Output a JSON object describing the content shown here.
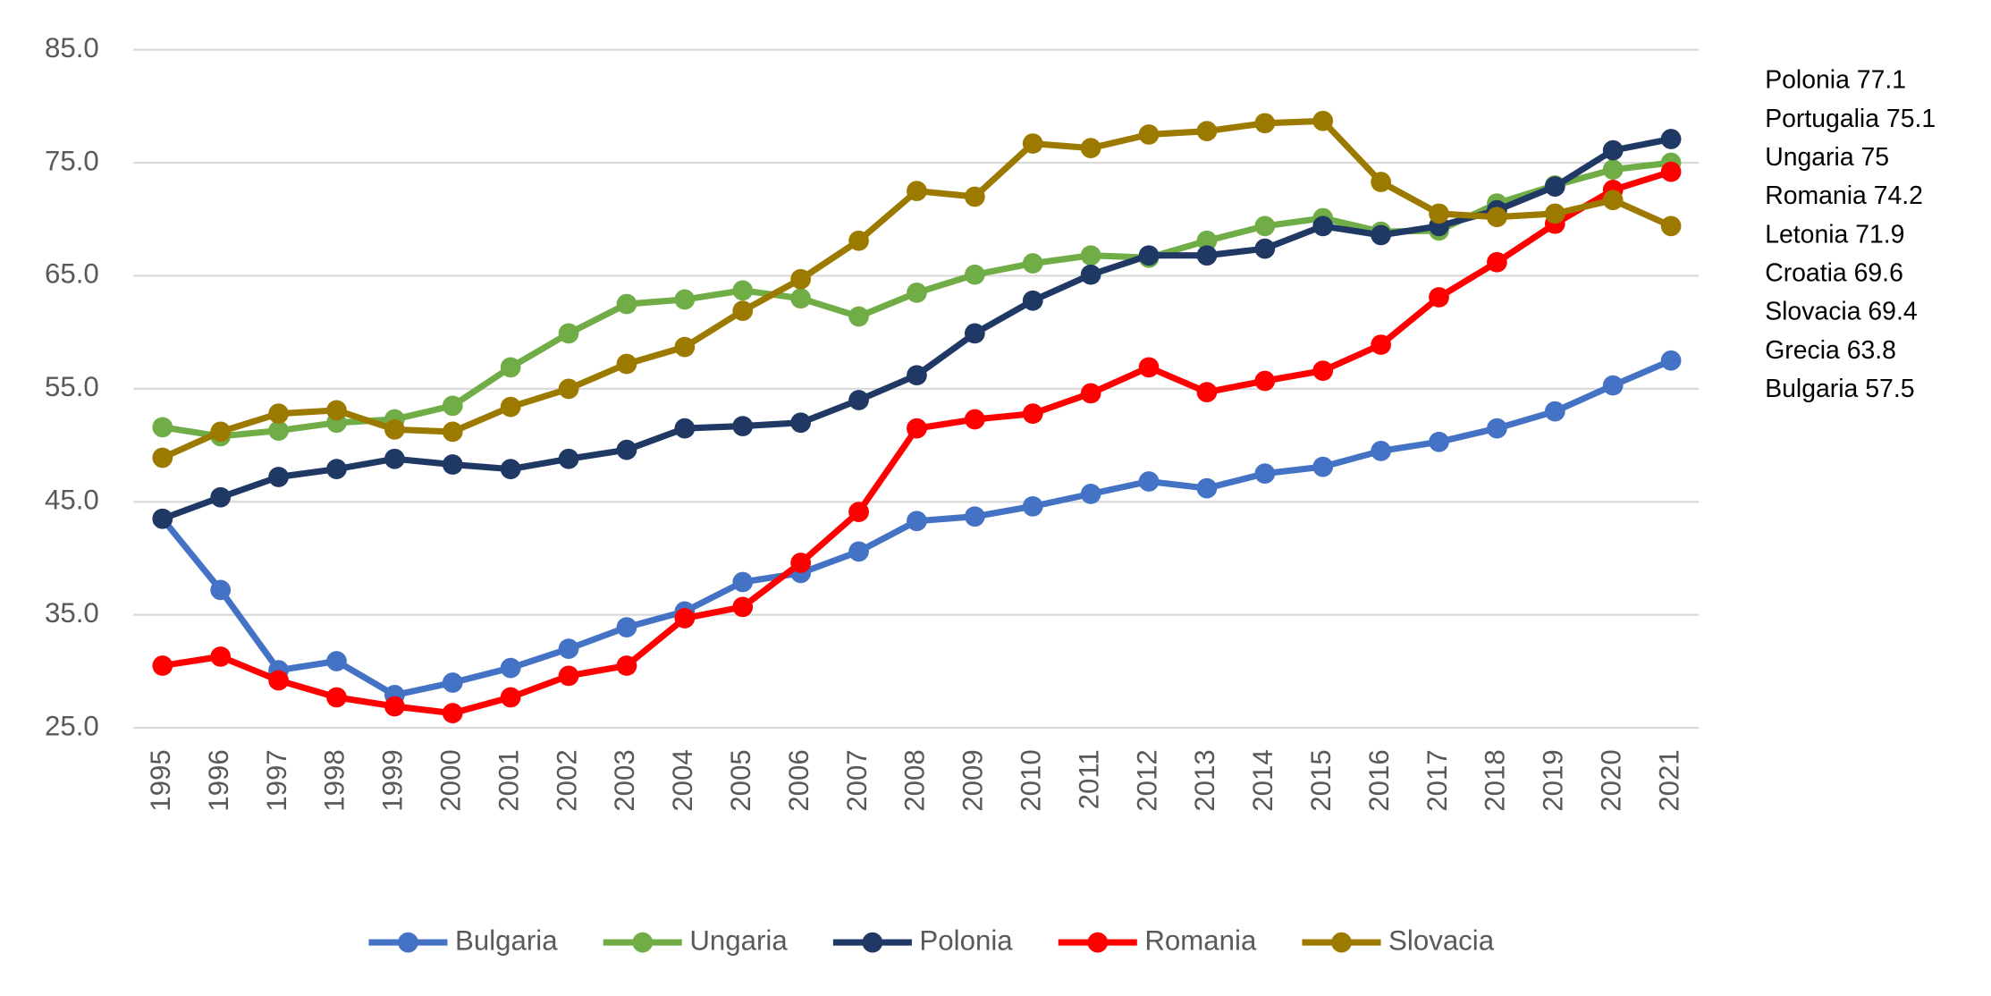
{
  "chart_data": {
    "type": "line",
    "categories": [
      "1995",
      "1996",
      "1997",
      "1998",
      "1999",
      "2000",
      "2001",
      "2002",
      "2003",
      "2004",
      "2005",
      "2006",
      "2007",
      "2008",
      "2009",
      "2010",
      "2011",
      "2012",
      "2013",
      "2014",
      "2015",
      "2016",
      "2017",
      "2018",
      "2019",
      "2020",
      "2021"
    ],
    "series": [
      {
        "name": "Bulgaria",
        "color": "#4472c4",
        "values": [
          43.5,
          37.2,
          30.1,
          30.9,
          27.9,
          29.0,
          30.3,
          32.0,
          33.9,
          35.3,
          37.9,
          38.7,
          40.6,
          43.3,
          43.7,
          44.6,
          45.7,
          46.8,
          46.2,
          47.5,
          48.1,
          49.5,
          50.3,
          51.5,
          53.0,
          55.3,
          57.5
        ]
      },
      {
        "name": "Ungaria",
        "color": "#70ad47",
        "values": [
          51.6,
          50.8,
          51.3,
          52.0,
          52.3,
          53.5,
          56.9,
          59.9,
          62.5,
          62.9,
          63.7,
          63.0,
          61.4,
          63.5,
          65.1,
          66.1,
          66.8,
          66.6,
          68.1,
          69.4,
          70.1,
          68.9,
          69.0,
          71.4,
          73.0,
          74.4,
          75.0
        ]
      },
      {
        "name": "Polonia",
        "color": "#203864",
        "values": [
          43.5,
          45.4,
          47.2,
          47.9,
          48.8,
          48.3,
          47.9,
          48.8,
          49.6,
          51.5,
          51.7,
          52.0,
          54.0,
          56.2,
          59.9,
          62.8,
          65.1,
          66.8,
          66.8,
          67.4,
          69.4,
          68.6,
          69.4,
          70.8,
          72.9,
          76.1,
          77.1
        ]
      },
      {
        "name": "Romania",
        "color": "#ff0000",
        "values": [
          30.5,
          31.3,
          29.2,
          27.7,
          26.9,
          26.3,
          27.7,
          29.6,
          30.5,
          34.7,
          35.7,
          39.6,
          44.1,
          51.5,
          52.3,
          52.8,
          54.6,
          56.9,
          54.7,
          55.7,
          56.6,
          58.9,
          63.1,
          66.2,
          69.6,
          72.6,
          74.2
        ]
      },
      {
        "name": "Slovacia",
        "color": "#9c7a00",
        "values": [
          48.9,
          51.2,
          52.8,
          53.1,
          51.4,
          51.2,
          53.4,
          55.0,
          57.2,
          58.7,
          61.9,
          64.7,
          68.1,
          72.5,
          72.0,
          76.7,
          76.3,
          77.5,
          77.8,
          78.5,
          78.7,
          73.3,
          70.5,
          70.2,
          70.5,
          71.7,
          69.4
        ]
      }
    ],
    "ylim": [
      25,
      85
    ],
    "yticks": [
      {
        "value": 25,
        "label": "25.0"
      },
      {
        "value": 35,
        "label": "35.0"
      },
      {
        "value": 45,
        "label": "45.0"
      },
      {
        "value": 55,
        "label": "55.0"
      },
      {
        "value": 65,
        "label": "65.0"
      },
      {
        "value": 75,
        "label": "75.0"
      },
      {
        "value": 85,
        "label": "85.0"
      }
    ],
    "grid": true,
    "legend": "bottom",
    "annotations": [
      "Polonia 77.1",
      "Portugalia 75.1",
      "Ungaria 75",
      "Romania 74.2",
      "Letonia 71.9",
      "Croatia 69.6",
      "Slovacia 69.4",
      "Grecia 63.8",
      "Bulgaria 57.5"
    ]
  }
}
